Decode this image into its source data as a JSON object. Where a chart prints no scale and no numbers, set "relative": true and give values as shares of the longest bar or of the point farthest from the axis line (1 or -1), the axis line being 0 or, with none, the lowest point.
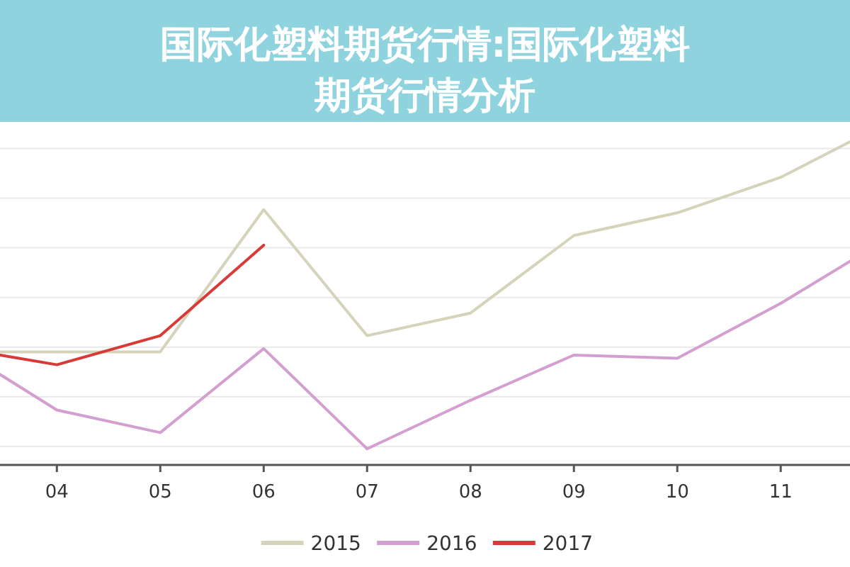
{
  "chart_data": {
    "type": "line",
    "title": "国际化塑料期货行情:国际化塑料期货行情分析",
    "relative": true,
    "x": [
      3.45,
      4,
      5,
      6,
      7,
      8,
      9,
      10,
      11,
      11.67
    ],
    "xlim": [
      3.45,
      11.67
    ],
    "xticks": [
      {
        "value": 4,
        "label": "04"
      },
      {
        "value": 5,
        "label": "05"
      },
      {
        "value": 6,
        "label": "06"
      },
      {
        "value": 7,
        "label": "07"
      },
      {
        "value": 8,
        "label": "08"
      },
      {
        "value": 9,
        "label": "09"
      },
      {
        "value": 10,
        "label": "10"
      },
      {
        "value": 11,
        "label": "11"
      }
    ],
    "series": [
      {
        "name": "2015",
        "color": "#d6d3bb",
        "values": [
          0.35,
          0.35,
          0.35,
          0.79,
          0.4,
          0.47,
          0.71,
          0.78,
          0.89,
          1
        ]
      },
      {
        "name": "2016",
        "color": "#d39ed0",
        "values": [
          0.28,
          0.17,
          0.1,
          0.36,
          0.05,
          0.2,
          0.34,
          0.33,
          0.5,
          0.63
        ]
      },
      {
        "name": "2017",
        "color": "#d83a3a",
        "values": [
          0.34,
          0.31,
          0.4,
          0.68,
          null,
          null,
          null,
          null,
          null,
          null
        ]
      }
    ],
    "grid": "y",
    "legend": "bottom",
    "line_style": "solid"
  }
}
